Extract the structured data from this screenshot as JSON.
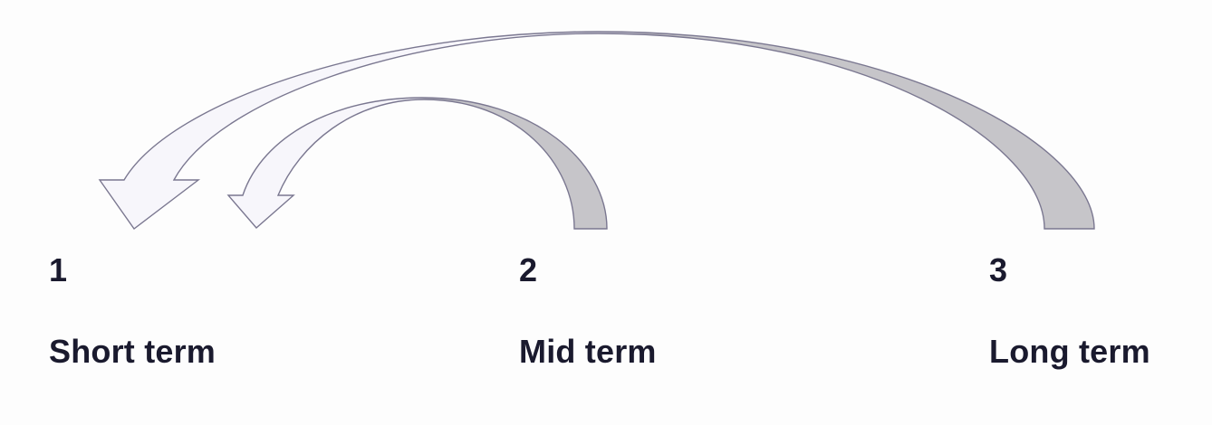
{
  "stages": [
    {
      "number": "1",
      "label": "Short term"
    },
    {
      "number": "2",
      "label": "Mid term"
    },
    {
      "number": "3",
      "label": "Long term"
    }
  ],
  "arrows": [
    {
      "from": "2",
      "to": "1"
    },
    {
      "from": "3",
      "to": "1"
    }
  ],
  "colors": {
    "text": "#1a1a2e",
    "arrow_stroke": "#7a7790",
    "arrow_shade": "#c6c5c9",
    "arrow_light": "#f7f6fb",
    "background": "#fdfdfd"
  }
}
